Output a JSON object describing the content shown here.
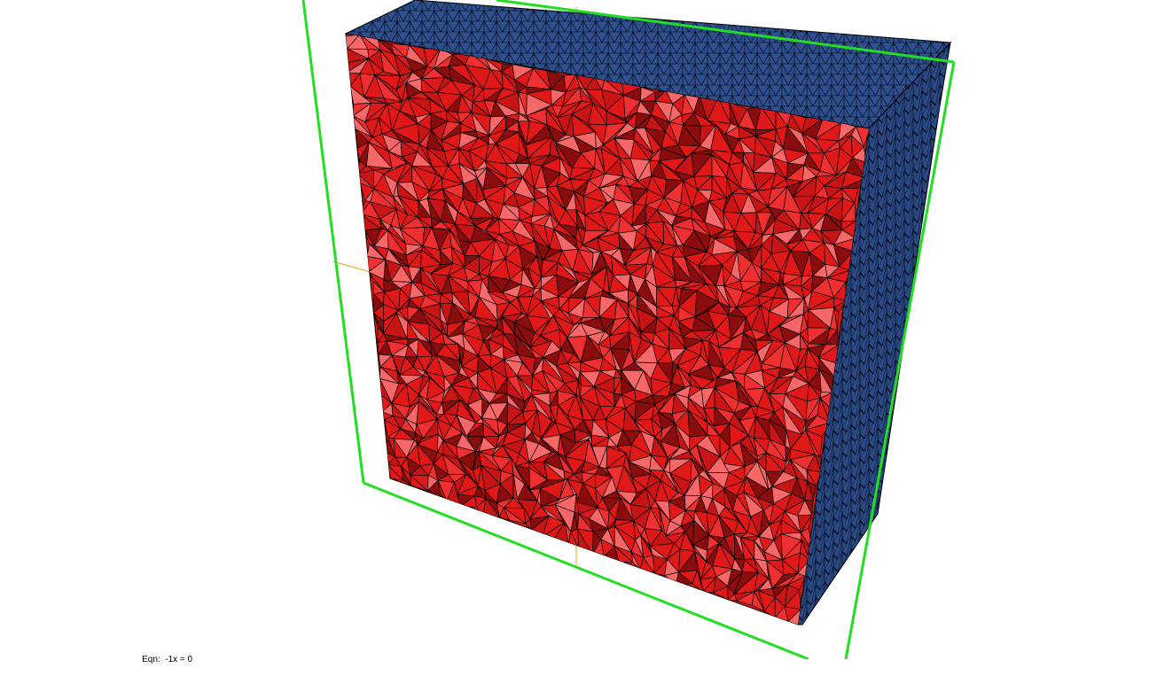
{
  "viewer": {
    "clipping_plane_equation_label": "Eqn:",
    "clipping_plane_equation_value": "-1x = 0",
    "icons": {
      "clip_box": "clipping-box-outline",
      "axes": "origin-axes",
      "mesh_cut": "sectioned-tetrahedral-mesh"
    }
  },
  "colors": {
    "background": "#ffffff",
    "clip_box": "#22dd22",
    "axes": "#f0a020",
    "cut_face": "#e01818",
    "cut_face_light": "#f86868",
    "cut_face_dark": "#8a0c0c",
    "boundary_face": "#2e4f90",
    "boundary_face_dark": "#22407c",
    "mesh_edges": "#000000"
  }
}
